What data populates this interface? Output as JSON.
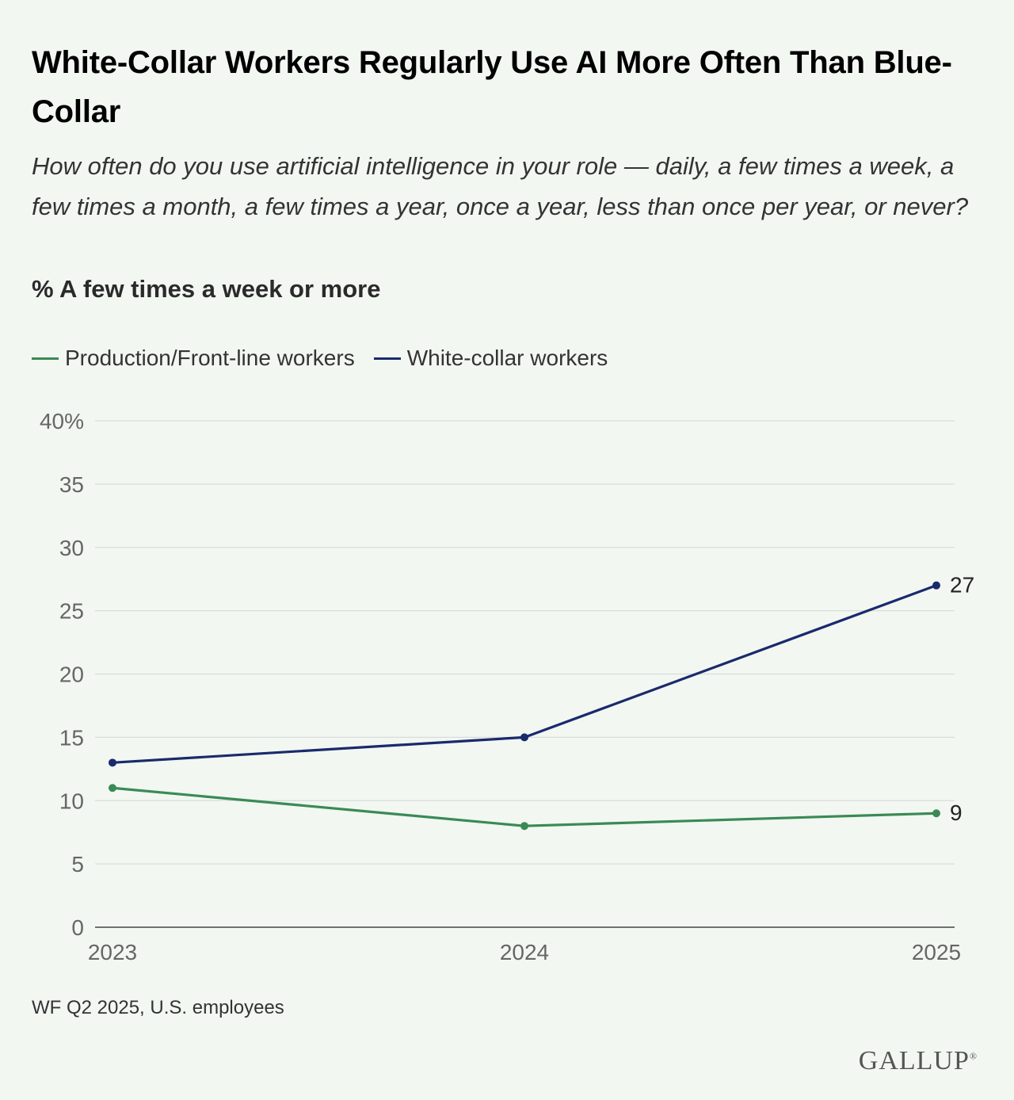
{
  "header": {
    "title": "White-Collar Workers Regularly Use AI More Often Than Blue-Collar",
    "subtitle": "How often do you use artificial intelligence in your role — daily, a few times a week, a few times a month, a few times a year, once a year, less than once per year, or never?",
    "measure": "% A few times a week or more"
  },
  "chart_data": {
    "type": "line",
    "title": "White-Collar Workers Regularly Use AI More Often Than Blue-Collar",
    "ylabel": "% A few times a week or more",
    "xlabel": "",
    "x": [
      "2023",
      "2024",
      "2025"
    ],
    "ylim": [
      0,
      40
    ],
    "yticks": [
      0,
      5,
      10,
      15,
      20,
      25,
      30,
      35,
      40
    ],
    "ytick_labels": [
      "0",
      "5",
      "10",
      "15",
      "20",
      "25",
      "30",
      "35",
      "40%"
    ],
    "grid": true,
    "legend_position": "top-left",
    "series": [
      {
        "name": "Production/Front-line workers",
        "color": "#3a8a55",
        "values": [
          11,
          8,
          9
        ],
        "end_label": "9"
      },
      {
        "name": "White-collar workers",
        "color": "#1a2a6c",
        "values": [
          13,
          15,
          27
        ],
        "end_label": "27"
      }
    ]
  },
  "footer": {
    "source": "WF Q2 2025, U.S. employees",
    "brand": "GALLUP",
    "brand_mark": "®"
  }
}
